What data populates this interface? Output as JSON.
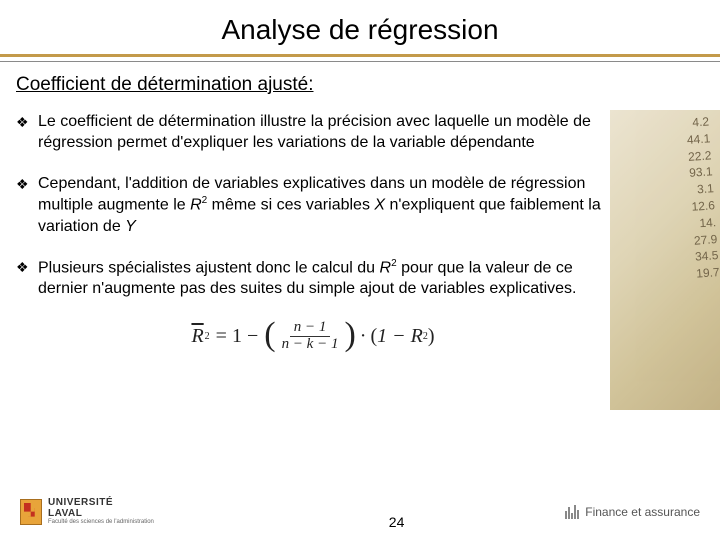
{
  "title": "Analyse de régression",
  "subtitle": "Coefficient de détermination ajusté:",
  "divider_color": "#c39a4a",
  "bullets": [
    {
      "text": "Le coefficient de détermination illustre la précision avec laquelle un modèle de régression permet d'expliquer les variations de la variable dépendante"
    },
    {
      "html": "Cependant, l'addition de variables explicatives dans un modèle de régression multiple augmente le <i>R</i><span class='sup'>2</span> même si ces variables <i>X</i> n'expliquent que faiblement la variation de <i>Y</i>"
    },
    {
      "html": "Plusieurs spécialistes ajustent donc le calcul du <i>R</i><span class='sup'>2</span> pour que la valeur de ce dernier n'augmente pas des suites du simple ajout de variables explicatives."
    }
  ],
  "formula": {
    "lhs_overline": "R",
    "lhs_sup": "2",
    "frac_num": "n − 1",
    "frac_den": "n − k − 1",
    "tail": "1 − R",
    "tail_sup": "2"
  },
  "side_numbers": [
    "4.2",
    "44.1",
    "22.2",
    "93.1",
    "3.1",
    "12.6",
    "14.",
    "27.9",
    "34.5",
    "19.7"
  ],
  "footer": {
    "left_university": "UNIVERSITÉ",
    "left_name": "LAVAL",
    "left_sub": "Faculté des sciences de l'administration",
    "right": "Finance et assurance"
  },
  "page_number": "24"
}
